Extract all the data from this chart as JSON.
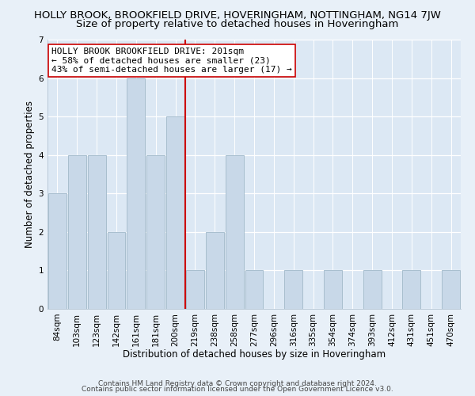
{
  "title_top": "HOLLY BROOK, BROOKFIELD DRIVE, HOVERINGHAM, NOTTINGHAM, NG14 7JW",
  "title_sub": "Size of property relative to detached houses in Hoveringham",
  "xlabel": "Distribution of detached houses by size in Hoveringham",
  "ylabel": "Number of detached properties",
  "footer_line1": "Contains HM Land Registry data © Crown copyright and database right 2024.",
  "footer_line2": "Contains public sector information licensed under the Open Government Licence v3.0.",
  "bar_labels": [
    "84sqm",
    "103sqm",
    "123sqm",
    "142sqm",
    "161sqm",
    "181sqm",
    "200sqm",
    "219sqm",
    "238sqm",
    "258sqm",
    "277sqm",
    "296sqm",
    "316sqm",
    "335sqm",
    "354sqm",
    "374sqm",
    "393sqm",
    "412sqm",
    "431sqm",
    "451sqm",
    "470sqm"
  ],
  "bar_values": [
    3,
    4,
    4,
    2,
    6,
    4,
    5,
    1,
    2,
    4,
    1,
    0,
    1,
    0,
    1,
    0,
    1,
    0,
    1,
    0,
    1
  ],
  "bar_color": "#c8d8e8",
  "bar_edgecolor": "#a8bece",
  "reference_line_color": "#cc0000",
  "annotation_text": "HOLLY BROOK BROOKFIELD DRIVE: 201sqm\n← 58% of detached houses are smaller (23)\n43% of semi-detached houses are larger (17) →",
  "annotation_box_color": "#ffffff",
  "annotation_box_edgecolor": "#cc0000",
  "ylim": [
    0,
    7
  ],
  "yticks": [
    0,
    1,
    2,
    3,
    4,
    5,
    6,
    7
  ],
  "background_color": "#e8f0f8",
  "plot_bg_color": "#dce8f4",
  "grid_color": "#ffffff",
  "title_fontsize": 9.5,
  "subtitle_fontsize": 9.5,
  "tick_fontsize": 7.5,
  "ylabel_fontsize": 8.5,
  "xlabel_fontsize": 8.5,
  "annotation_fontsize": 8,
  "footer_fontsize": 6.5
}
